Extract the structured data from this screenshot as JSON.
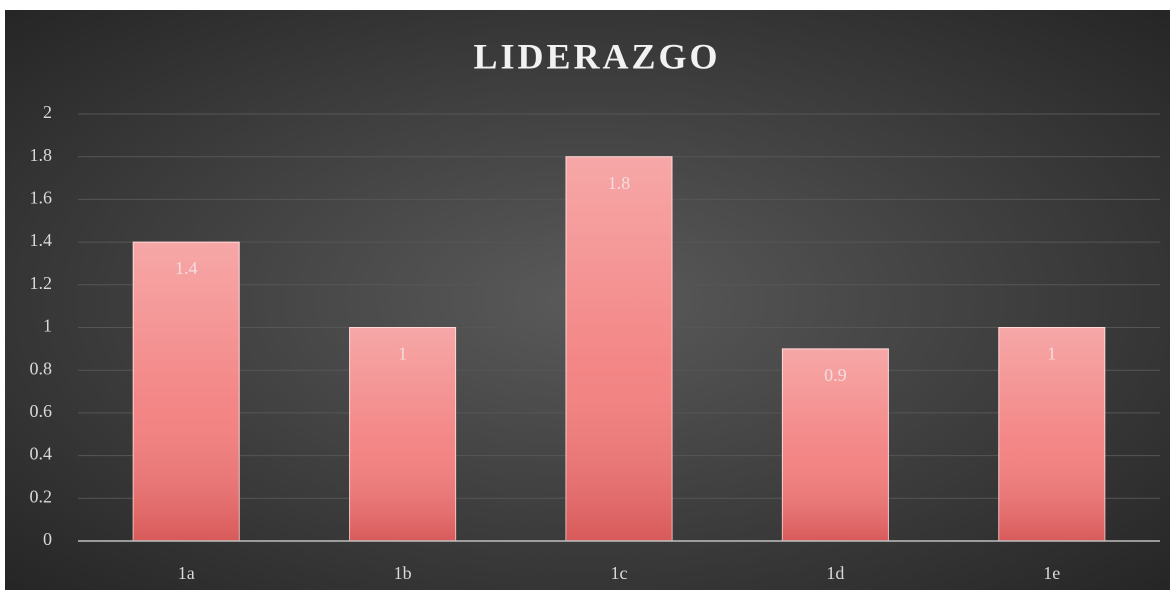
{
  "chart_data": {
    "type": "bar",
    "title": "LIDERAZGO",
    "categories": [
      "1a",
      "1b",
      "1c",
      "1d",
      "1e"
    ],
    "values": [
      1.4,
      1,
      1.8,
      0.9,
      1
    ],
    "color": "#f27878",
    "ylim": [
      0,
      2
    ],
    "yticks": [
      0,
      0.2,
      0.4,
      0.6,
      0.8,
      1,
      1.2,
      1.4,
      1.6,
      1.8,
      2
    ],
    "grid": true
  }
}
